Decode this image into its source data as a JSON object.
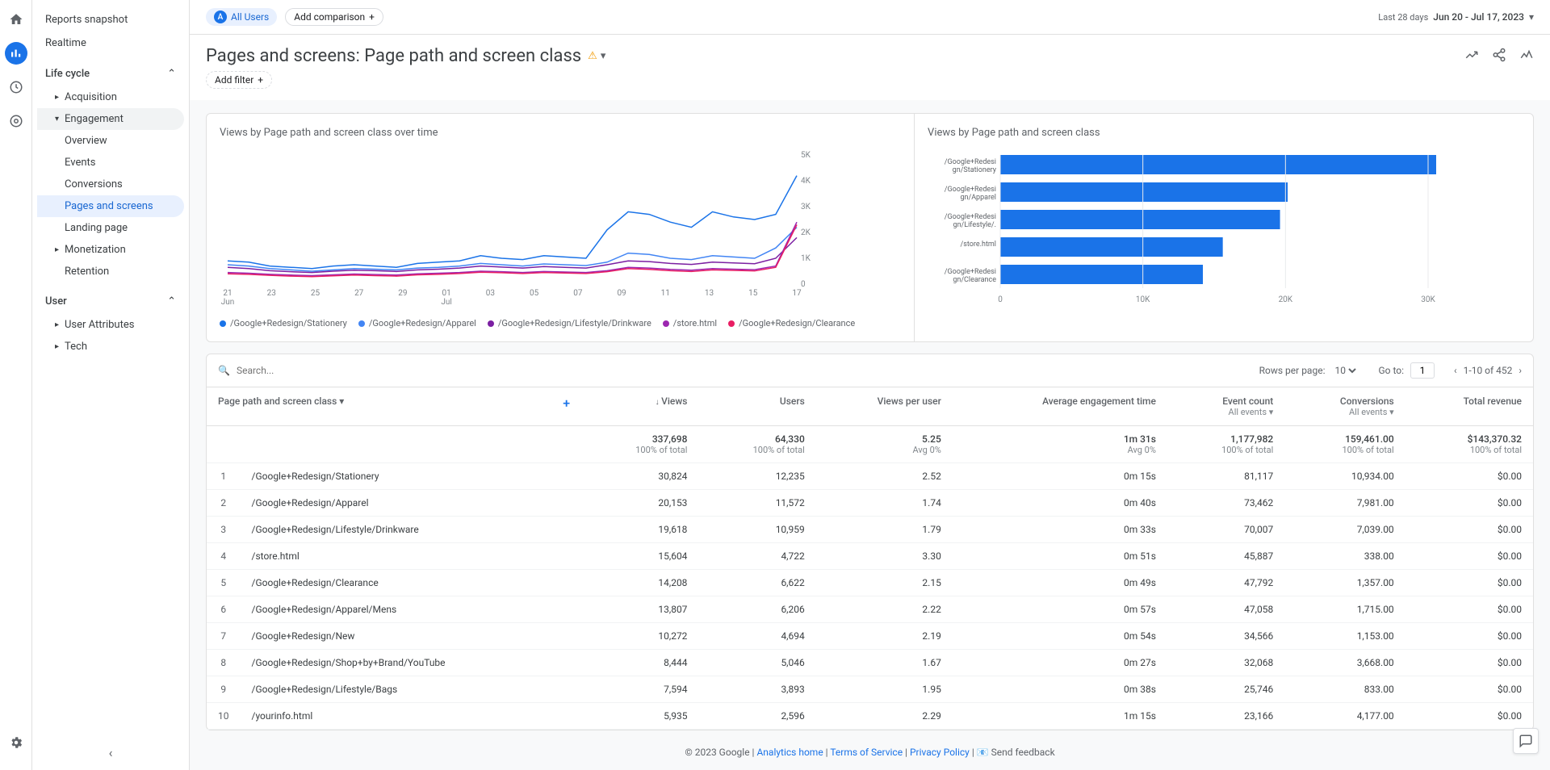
{
  "rail": {
    "icons": [
      "home",
      "reports",
      "explore",
      "advertising"
    ],
    "bottom": "settings"
  },
  "sidebar": {
    "top": [
      "Reports snapshot",
      "Realtime"
    ],
    "section1": {
      "label": "Life cycle",
      "items": [
        {
          "label": "Acquisition"
        },
        {
          "label": "Engagement",
          "open": true,
          "children": [
            "Overview",
            "Events",
            "Conversions",
            "Pages and screens",
            "Landing page"
          ],
          "selected": "Pages and screens"
        },
        {
          "label": "Monetization"
        },
        {
          "label": "Retention",
          "leaf": true
        }
      ]
    },
    "section2": {
      "label": "User",
      "items": [
        {
          "label": "User Attributes"
        },
        {
          "label": "Tech"
        }
      ]
    }
  },
  "topbar": {
    "all_users": "All Users",
    "add_comparison": "Add comparison",
    "date_label": "Last 28 days",
    "date_range": "Jun 20 - Jul 17, 2023"
  },
  "title": "Pages and screens: Page path and screen class",
  "add_filter": "Add filter",
  "line_chart": {
    "title": "Views by Page path and screen class over time",
    "ylim": [
      0,
      5000
    ],
    "yticks": [
      0,
      1000,
      2000,
      3000,
      4000,
      5000
    ],
    "ytick_labels": [
      "0",
      "1K",
      "2K",
      "3K",
      "4K",
      "5K"
    ],
    "xticks": [
      "21\nJun",
      "23",
      "25",
      "27",
      "29",
      "01\nJul",
      "03",
      "05",
      "07",
      "09",
      "11",
      "13",
      "15",
      "17"
    ],
    "series": [
      {
        "name": "/Google+Redesign/Stationery",
        "color": "#1a73e8",
        "values": [
          900,
          850,
          700,
          650,
          600,
          700,
          750,
          700,
          650,
          800,
          850,
          900,
          1100,
          1000,
          950,
          1100,
          1050,
          1000,
          2100,
          2800,
          2700,
          2400,
          2200,
          2800,
          2600,
          2500,
          2700,
          4200
        ]
      },
      {
        "name": "/Google+Redesign/Apparel",
        "color": "#4285f4",
        "values": [
          750,
          700,
          600,
          550,
          500,
          550,
          600,
          580,
          550,
          620,
          650,
          700,
          800,
          750,
          700,
          780,
          750,
          720,
          850,
          1200,
          1150,
          1000,
          950,
          1100,
          1050,
          1000,
          1400,
          2200
        ]
      },
      {
        "name": "/Google+Redesign/Lifestyle/Drinkware",
        "color": "#7b1fa2",
        "values": [
          650,
          600,
          520,
          480,
          450,
          500,
          540,
          520,
          490,
          550,
          580,
          620,
          700,
          660,
          620,
          680,
          650,
          620,
          750,
          900,
          870,
          800,
          760,
          850,
          820,
          790,
          1000,
          1800
        ]
      },
      {
        "name": "/store.html",
        "color": "#9c27b0",
        "values": [
          450,
          420,
          380,
          350,
          330,
          360,
          390,
          370,
          350,
          400,
          420,
          450,
          500,
          480,
          450,
          490,
          470,
          450,
          520,
          650,
          620,
          570,
          540,
          600,
          580,
          560,
          700,
          2400
        ]
      },
      {
        "name": "/Google+Redesign/Clearance",
        "color": "#e91e63",
        "values": [
          400,
          380,
          340,
          310,
          290,
          320,
          350,
          330,
          310,
          360,
          380,
          410,
          460,
          440,
          410,
          450,
          430,
          410,
          480,
          600,
          570,
          520,
          490,
          550,
          530,
          510,
          650,
          2300
        ]
      }
    ]
  },
  "bar_chart": {
    "title": "Views by Page path and screen class",
    "xlim": [
      0,
      30000
    ],
    "xticks": [
      0,
      10000,
      20000,
      30000
    ],
    "xtick_labels": [
      "0",
      "10K",
      "20K",
      "30K"
    ],
    "bar_color": "#1a73e8",
    "bars": [
      {
        "label": "/Google+Redesign/Stationery",
        "value": 30824
      },
      {
        "label": "/Google+Redesign/Apparel",
        "value": 20153
      },
      {
        "label": "/Google+Redesign/Lifestyle/...",
        "value": 19618
      },
      {
        "label": "/store.html",
        "value": 15604
      },
      {
        "label": "/Google+Redesign/Clearance",
        "value": 14208
      }
    ]
  },
  "table": {
    "search_placeholder": "Search...",
    "rows_per_page_label": "Rows per page:",
    "rows_per_page": "10",
    "goto_label": "Go to:",
    "goto_value": "1",
    "range": "1-10 of 452",
    "dim_header": "Page path and screen class",
    "metrics": [
      {
        "label": "Views",
        "sort": true
      },
      {
        "label": "Users"
      },
      {
        "label": "Views per user"
      },
      {
        "label": "Average engagement time"
      },
      {
        "label": "Event count",
        "sub": "All events"
      },
      {
        "label": "Conversions",
        "sub": "All events"
      },
      {
        "label": "Total revenue"
      }
    ],
    "totals": {
      "views": "337,698",
      "views_sub": "100% of total",
      "users": "64,330",
      "users_sub": "100% of total",
      "vpu": "5.25",
      "vpu_sub": "Avg 0%",
      "aet": "1m 31s",
      "aet_sub": "Avg 0%",
      "events": "1,177,982",
      "events_sub": "100% of total",
      "conv": "159,461.00",
      "conv_sub": "100% of total",
      "rev": "$143,370.32",
      "rev_sub": "100% of total"
    },
    "rows": [
      {
        "i": 1,
        "dim": "/Google+Redesign/Stationery",
        "views": "30,824",
        "users": "12,235",
        "vpu": "2.52",
        "aet": "0m 15s",
        "events": "81,117",
        "conv": "10,934.00",
        "rev": "$0.00"
      },
      {
        "i": 2,
        "dim": "/Google+Redesign/Apparel",
        "views": "20,153",
        "users": "11,572",
        "vpu": "1.74",
        "aet": "0m 40s",
        "events": "73,462",
        "conv": "7,981.00",
        "rev": "$0.00"
      },
      {
        "i": 3,
        "dim": "/Google+Redesign/Lifestyle/Drinkware",
        "views": "19,618",
        "users": "10,959",
        "vpu": "1.79",
        "aet": "0m 33s",
        "events": "70,007",
        "conv": "7,039.00",
        "rev": "$0.00"
      },
      {
        "i": 4,
        "dim": "/store.html",
        "views": "15,604",
        "users": "4,722",
        "vpu": "3.30",
        "aet": "0m 51s",
        "events": "45,887",
        "conv": "338.00",
        "rev": "$0.00"
      },
      {
        "i": 5,
        "dim": "/Google+Redesign/Clearance",
        "views": "14,208",
        "users": "6,622",
        "vpu": "2.15",
        "aet": "0m 49s",
        "events": "47,792",
        "conv": "1,357.00",
        "rev": "$0.00"
      },
      {
        "i": 6,
        "dim": "/Google+Redesign/Apparel/Mens",
        "views": "13,807",
        "users": "6,206",
        "vpu": "2.22",
        "aet": "0m 57s",
        "events": "47,058",
        "conv": "1,715.00",
        "rev": "$0.00"
      },
      {
        "i": 7,
        "dim": "/Google+Redesign/New",
        "views": "10,272",
        "users": "4,694",
        "vpu": "2.19",
        "aet": "0m 54s",
        "events": "34,566",
        "conv": "1,153.00",
        "rev": "$0.00"
      },
      {
        "i": 8,
        "dim": "/Google+Redesign/Shop+by+Brand/YouTube",
        "views": "8,444",
        "users": "5,046",
        "vpu": "1.67",
        "aet": "0m 27s",
        "events": "32,068",
        "conv": "3,668.00",
        "rev": "$0.00"
      },
      {
        "i": 9,
        "dim": "/Google+Redesign/Lifestyle/Bags",
        "views": "7,594",
        "users": "3,893",
        "vpu": "1.95",
        "aet": "0m 38s",
        "events": "25,746",
        "conv": "833.00",
        "rev": "$0.00"
      },
      {
        "i": 10,
        "dim": "/yourinfo.html",
        "views": "5,935",
        "users": "2,596",
        "vpu": "2.29",
        "aet": "1m 15s",
        "events": "23,166",
        "conv": "4,177.00",
        "rev": "$0.00"
      }
    ]
  },
  "footer": {
    "copyright": "© 2023 Google",
    "links": [
      "Analytics home",
      "Terms of Service",
      "Privacy Policy"
    ],
    "feedback": "Send feedback"
  }
}
